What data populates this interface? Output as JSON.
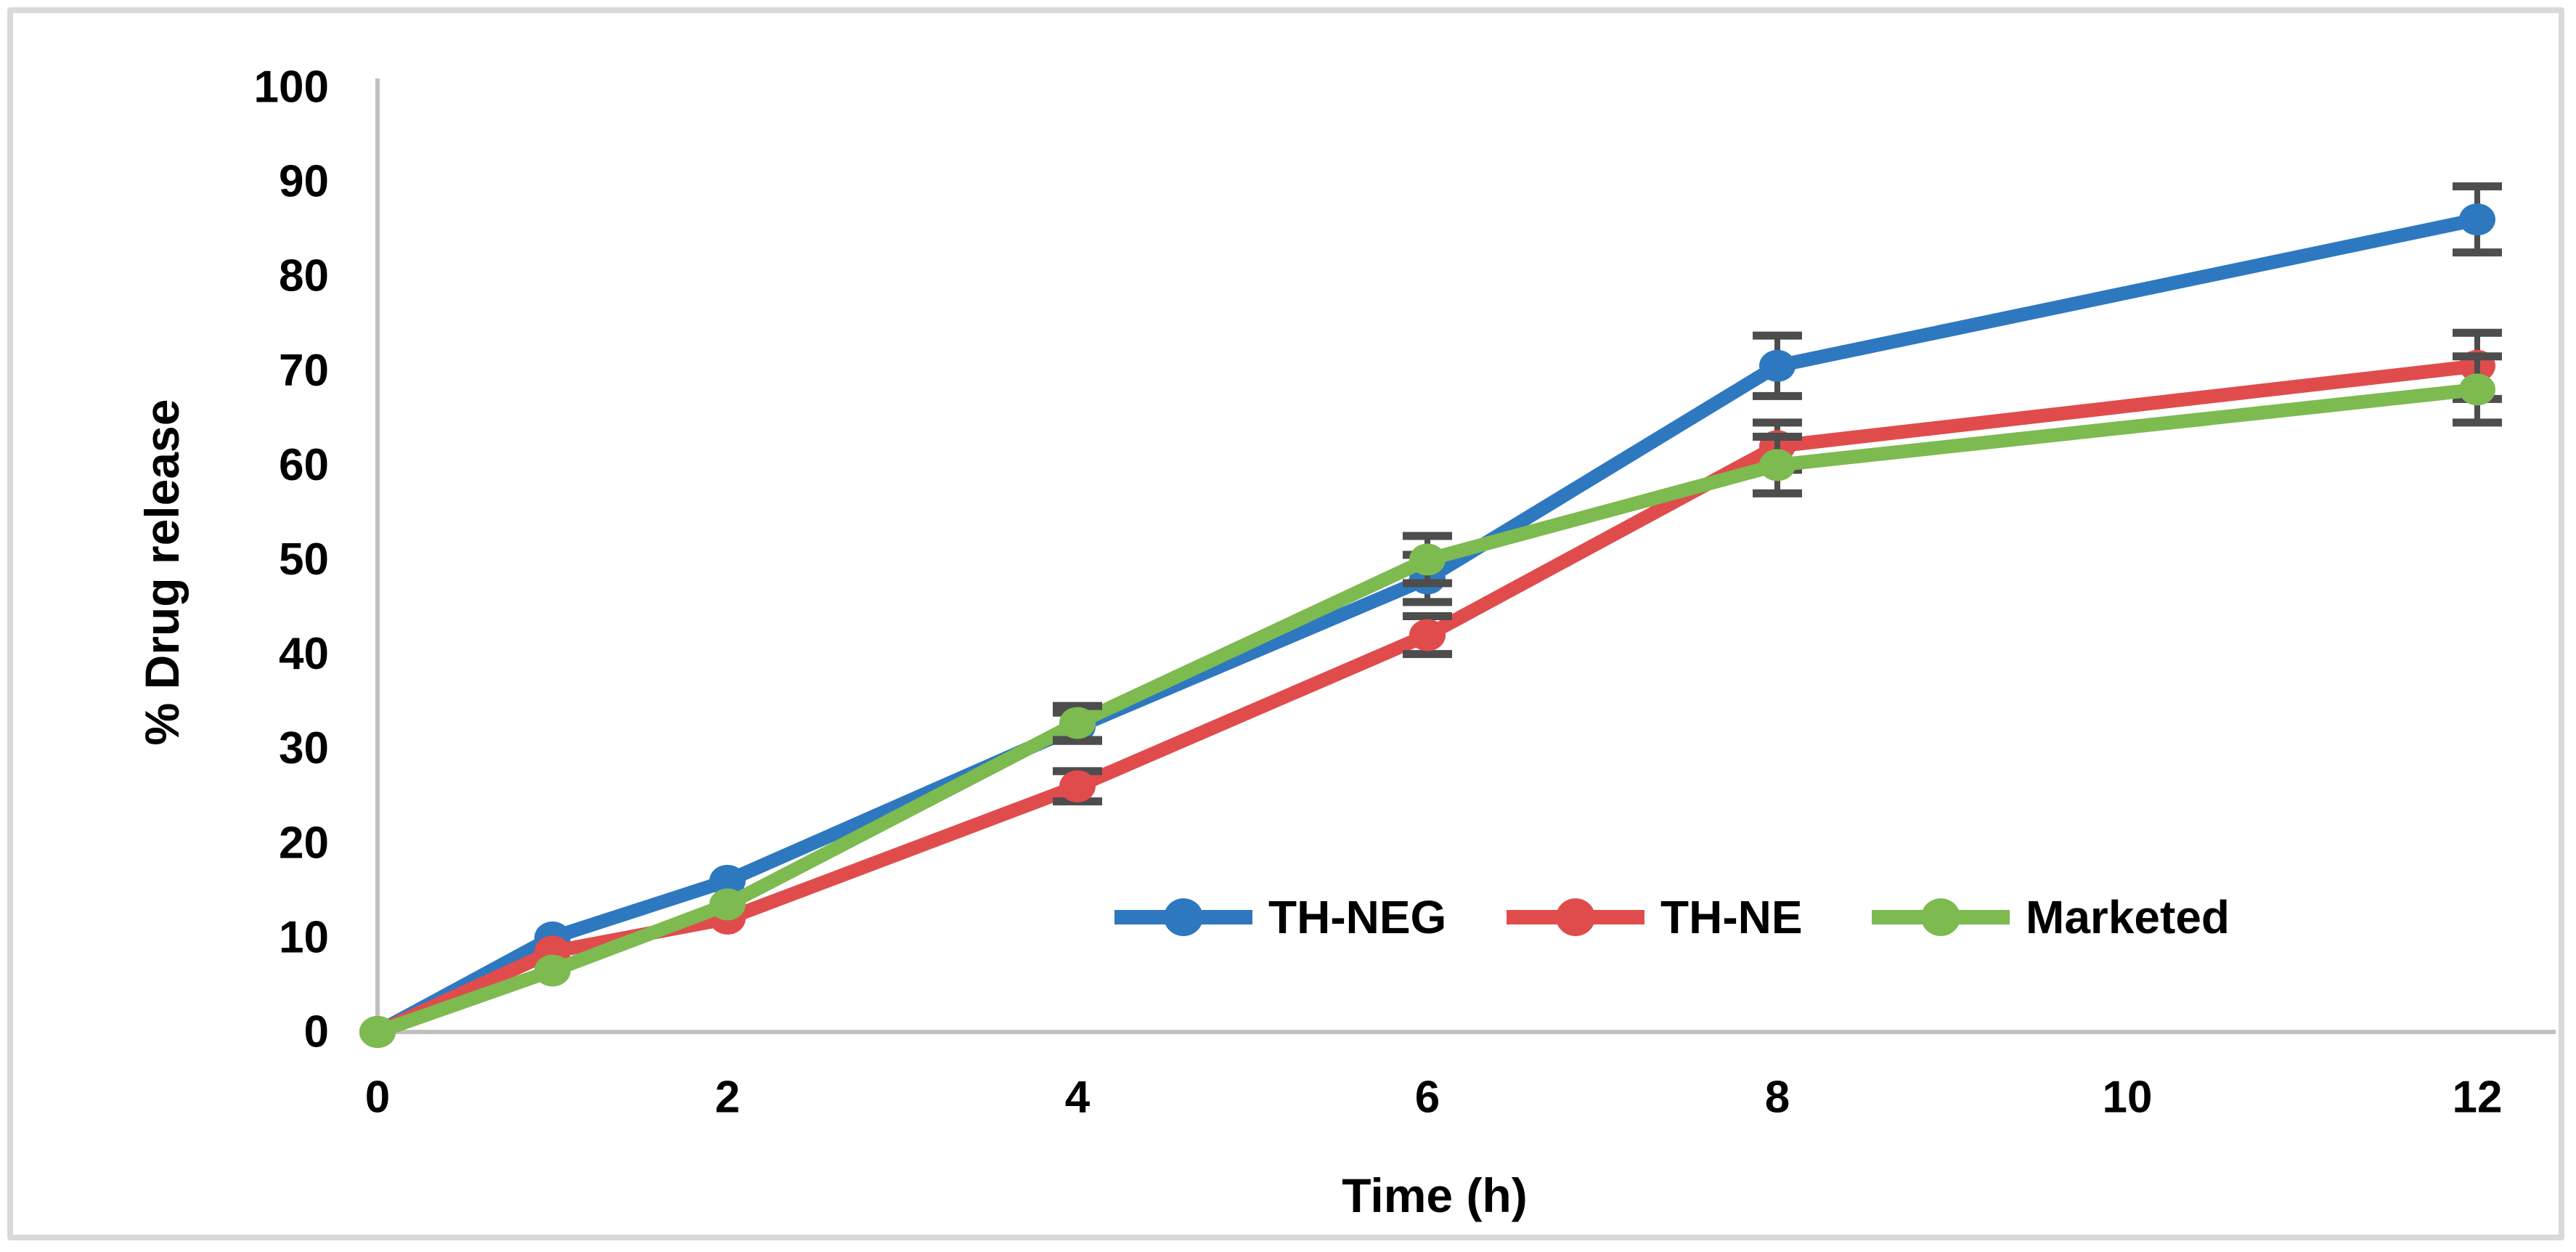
{
  "figure": {
    "background": "#ffffff",
    "border_color": "#d9d9d9"
  },
  "chart_data": {
    "type": "line",
    "title": "",
    "xlabel": "Time (h)",
    "ylabel": "% Drug release",
    "xlim": [
      0,
      12
    ],
    "ylim": [
      0,
      100
    ],
    "x_ticks": [
      0,
      2,
      4,
      6,
      8,
      10,
      12
    ],
    "y_ticks": [
      0,
      10,
      20,
      30,
      40,
      50,
      60,
      70,
      80,
      90,
      100
    ],
    "grid": false,
    "legend_position": "inside-bottom-right",
    "axis_color": "#c0c0c0",
    "error_bar_color": "#4d4d4d",
    "text_color": "#000000",
    "x": [
      0,
      1,
      2,
      4,
      6,
      8,
      12
    ],
    "series": [
      {
        "name": "TH-NEG",
        "color": "#2e78c0",
        "values": [
          0,
          10,
          16,
          32.3,
          48,
          70.5,
          86
        ],
        "errors": [
          0,
          0,
          0,
          1.5,
          2.5,
          3.2,
          3.5
        ]
      },
      {
        "name": "TH-NE",
        "color": "#e04c4c",
        "values": [
          0,
          8.5,
          12,
          26,
          42,
          62,
          70.5
        ],
        "errors": [
          0,
          0,
          0,
          1.6,
          2,
          2.5,
          3.5
        ]
      },
      {
        "name": "Marketed",
        "color": "#7dba50",
        "values": [
          0,
          6.5,
          13.5,
          32.7,
          50,
          60,
          68
        ],
        "errors": [
          0,
          0,
          0,
          1.8,
          2.5,
          3,
          3.5
        ]
      }
    ]
  }
}
